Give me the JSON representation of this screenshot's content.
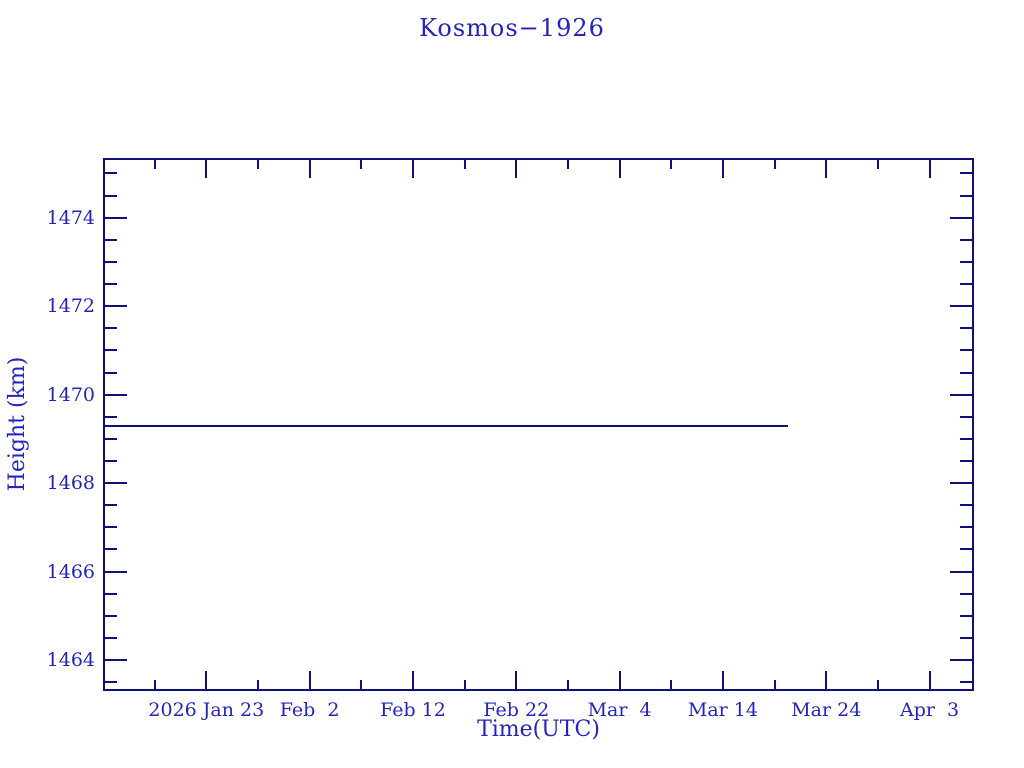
{
  "colors": {
    "background": "#ffffff",
    "axis": "#10107a",
    "text": "#2424bd",
    "line": "#10107a"
  },
  "chart_data": {
    "type": "line",
    "title": "Kosmos−1926",
    "xlabel": "Time(UTC)",
    "ylabel": "Height (km)",
    "grid": false,
    "legend": "none",
    "x_axis": {
      "unit": "days since 2026 Jan 13 (left edge)",
      "lim": [
        0,
        84.3
      ],
      "major_ticks": [
        {
          "d": 10,
          "label": "2026 Jan 23"
        },
        {
          "d": 20,
          "label": "Feb  2"
        },
        {
          "d": 30,
          "label": "Feb 12"
        },
        {
          "d": 40,
          "label": "Feb 22"
        },
        {
          "d": 50,
          "label": "Mar  4"
        },
        {
          "d": 60,
          "label": "Mar 14"
        },
        {
          "d": 70,
          "label": "Mar 24"
        },
        {
          "d": 80,
          "label": "Apr  3"
        }
      ],
      "minor_ticks": [
        5,
        15,
        25,
        35,
        45,
        55,
        65,
        75
      ]
    },
    "y_axis": {
      "unit": "km",
      "lim": [
        1463.3,
        1475.35
      ],
      "major_ticks": [
        {
          "v": 1464,
          "label": "1464"
        },
        {
          "v": 1466,
          "label": "1466"
        },
        {
          "v": 1468,
          "label": "1468"
        },
        {
          "v": 1470,
          "label": "1470"
        },
        {
          "v": 1472,
          "label": "1472"
        },
        {
          "v": 1474,
          "label": "1474"
        }
      ],
      "minor_step": 0.5
    },
    "series": [
      {
        "name": "height-km",
        "color": "#10107a",
        "points": [
          {
            "x": 0,
            "y": 1469.3
          },
          {
            "x": 66.3,
            "y": 1469.3
          }
        ]
      }
    ]
  }
}
